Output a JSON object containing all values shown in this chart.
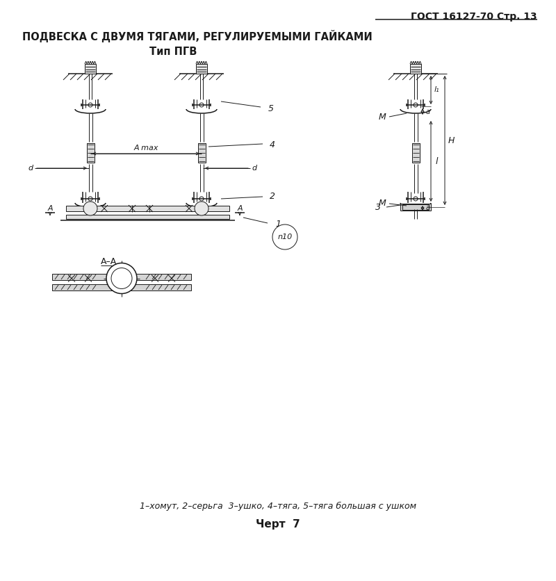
{
  "title_header": "ГОСТ 16127-70 Стр. 13",
  "title_main": "ПОДВЕСКА С ДВУМЯ ТЯГАМИ, РЕГУЛИРУЕМЫМИ ГАЙКАМИ",
  "title_type": "Тип ПГВ",
  "caption": "1–хомут, 2–серьга  3–ушко, 4–тяга, 5–тяга большая с ушком",
  "chart_label": "Черт  7",
  "section_label": "А–А",
  "bg_color": "#ffffff",
  "line_color": "#1a1a1a"
}
